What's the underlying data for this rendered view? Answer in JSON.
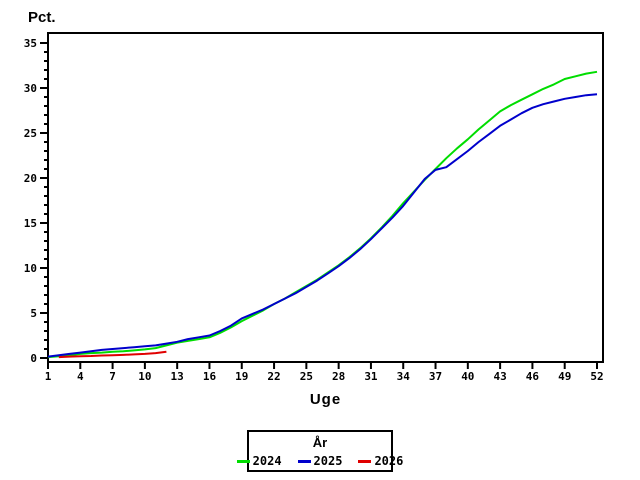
{
  "chart_data": {
    "type": "line",
    "xlabel": "Uge",
    "ylabel": "Pct.",
    "xlim": [
      1,
      52
    ],
    "ylim": [
      0,
      35
    ],
    "x_ticks": [
      1,
      4,
      7,
      10,
      13,
      16,
      19,
      22,
      25,
      28,
      31,
      34,
      37,
      40,
      43,
      46,
      49,
      52
    ],
    "y_ticks": [
      0,
      5,
      10,
      15,
      20,
      25,
      30,
      35
    ],
    "y_minor_step": 1,
    "grid": "off",
    "background": "#ffffff",
    "axis_color": "#000000",
    "legend": {
      "title": "År",
      "position": "bottom-center"
    },
    "series": [
      {
        "name": "2024",
        "color": "#00DD00",
        "x": [
          1,
          2,
          3,
          4,
          5,
          6,
          7,
          8,
          9,
          10,
          11,
          12,
          13,
          14,
          15,
          16,
          17,
          18,
          19,
          20,
          21,
          22,
          23,
          24,
          25,
          26,
          27,
          28,
          29,
          30,
          31,
          32,
          33,
          34,
          35,
          36,
          37,
          38,
          39,
          40,
          41,
          42,
          43,
          44,
          45,
          46,
          47,
          48,
          49,
          50,
          51,
          52
        ],
        "values": [
          0.1,
          0.2,
          0.3,
          0.45,
          0.55,
          0.6,
          0.7,
          0.75,
          0.85,
          0.95,
          1.1,
          1.4,
          1.7,
          1.9,
          2.1,
          2.3,
          2.8,
          3.4,
          4.1,
          4.7,
          5.3,
          6.0,
          6.6,
          7.3,
          8.0,
          8.7,
          9.5,
          10.3,
          11.2,
          12.2,
          13.3,
          14.5,
          15.8,
          17.2,
          18.5,
          19.8,
          21.0,
          22.2,
          23.3,
          24.3,
          25.4,
          26.4,
          27.4,
          28.1,
          28.7,
          29.3,
          29.9,
          30.4,
          31.0,
          31.3,
          31.6,
          31.8
        ]
      },
      {
        "name": "2025",
        "color": "#0000CC",
        "x": [
          1,
          2,
          3,
          4,
          5,
          6,
          7,
          8,
          9,
          10,
          11,
          12,
          13,
          14,
          15,
          16,
          17,
          18,
          19,
          20,
          21,
          22,
          23,
          24,
          25,
          26,
          27,
          28,
          29,
          30,
          31,
          32,
          33,
          34,
          35,
          36,
          37,
          38,
          39,
          40,
          41,
          42,
          43,
          44,
          45,
          46,
          47,
          48,
          49,
          50,
          51,
          52
        ],
        "values": [
          0.15,
          0.3,
          0.45,
          0.6,
          0.75,
          0.9,
          1.0,
          1.1,
          1.2,
          1.3,
          1.4,
          1.6,
          1.8,
          2.1,
          2.3,
          2.5,
          3.0,
          3.6,
          4.4,
          4.9,
          5.4,
          6.0,
          6.6,
          7.2,
          7.9,
          8.6,
          9.4,
          10.2,
          11.1,
          12.1,
          13.2,
          14.4,
          15.6,
          16.9,
          18.4,
          19.9,
          20.9,
          21.2,
          22.1,
          23.0,
          24.0,
          24.9,
          25.8,
          26.5,
          27.2,
          27.8,
          28.2,
          28.5,
          28.8,
          29.0,
          29.2,
          29.3
        ]
      },
      {
        "name": "2026",
        "color": "#E00000",
        "x": [
          2,
          3,
          4,
          5,
          6,
          7,
          8,
          9,
          10,
          11,
          12
        ],
        "values": [
          0.1,
          0.15,
          0.2,
          0.22,
          0.28,
          0.3,
          0.35,
          0.4,
          0.45,
          0.55,
          0.7
        ]
      }
    ]
  }
}
